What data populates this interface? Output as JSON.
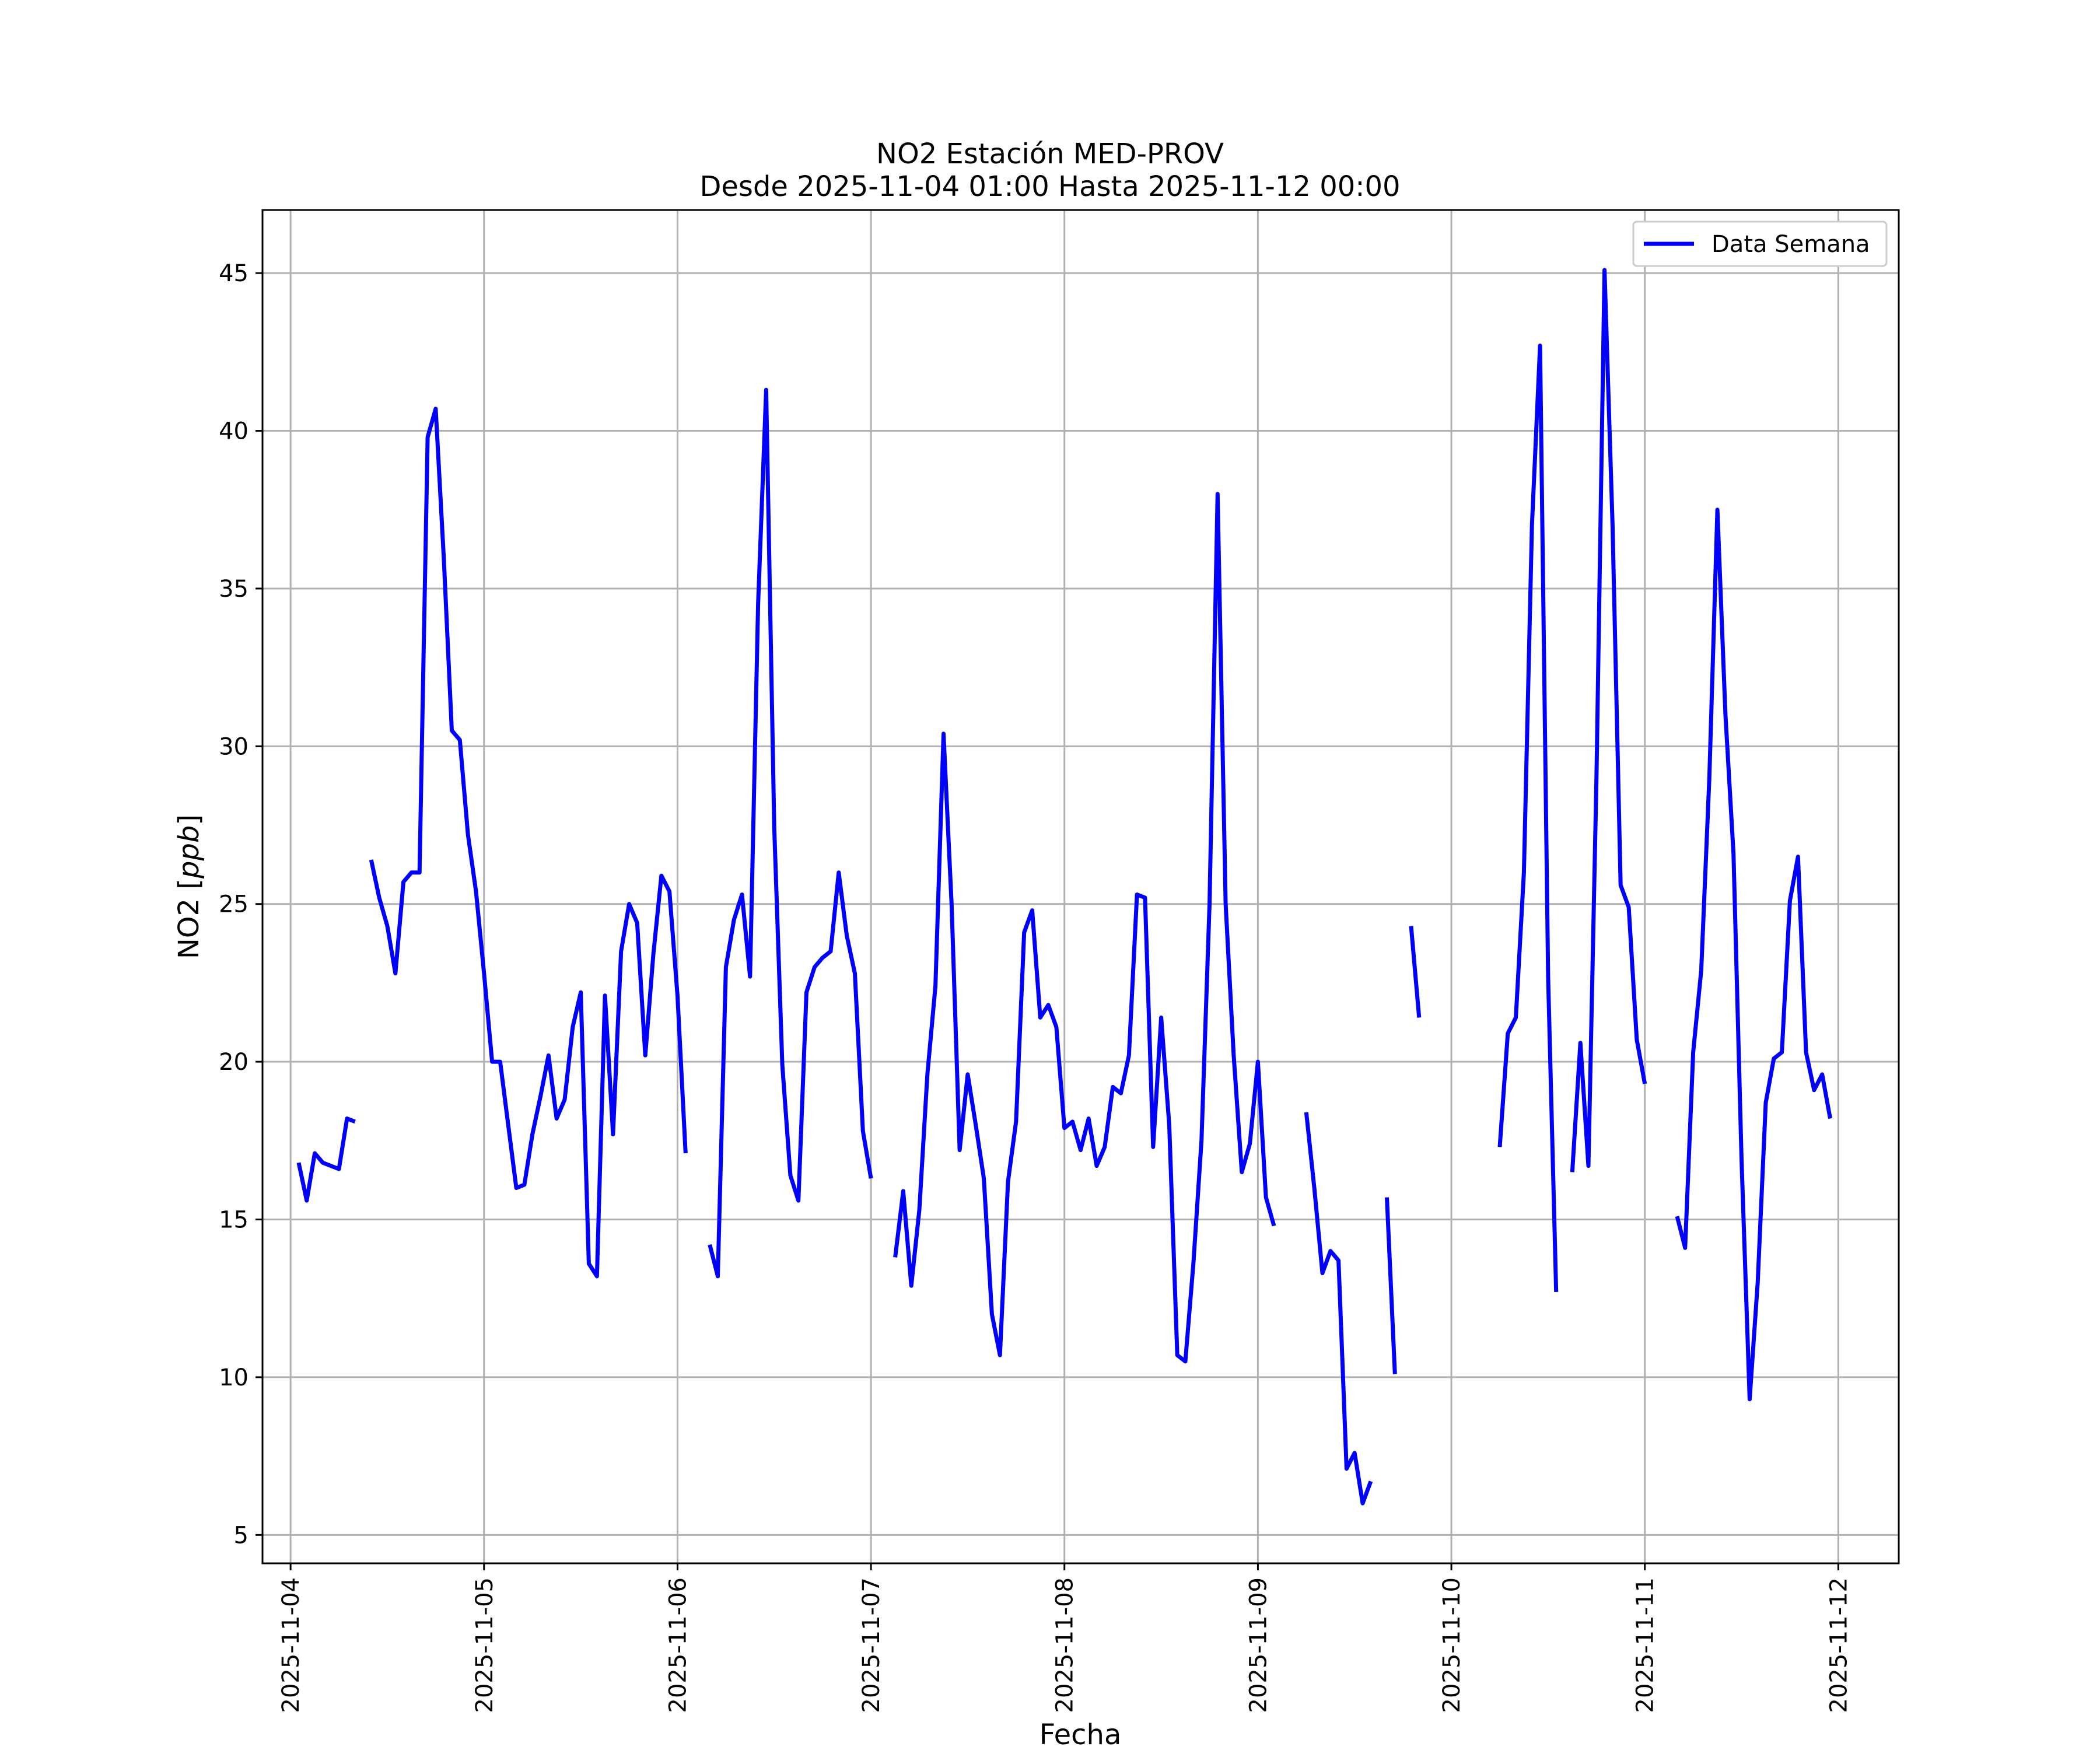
{
  "chart_data": {
    "type": "line",
    "title": "NO2 Estación MED-PROV",
    "subtitle": "Desde 2025-11-04 01:00 Hasta 2025-11-12 00:00",
    "xlabel": "Fecha",
    "ylabel": "NO2 [ppb]",
    "ylabel_main": "NO2 [",
    "ylabel_unit": "ppb",
    "ylabel_close": "]",
    "xlim": [
      "2025-11-03 20:31",
      "2025-11-12 07:30"
    ],
    "ylim": [
      4.1,
      47.0
    ],
    "x_ticks": [
      "2025-11-04",
      "2025-11-05",
      "2025-11-06",
      "2025-11-07",
      "2025-11-08",
      "2025-11-09",
      "2025-11-10",
      "2025-11-11",
      "2025-11-12"
    ],
    "y_ticks": [
      5,
      10,
      15,
      20,
      25,
      30,
      35,
      40,
      45
    ],
    "grid": true,
    "legend_position": "top-right",
    "series": [
      {
        "name": "Data Semana",
        "color": "#0000ff",
        "points": [
          [
            "2025-11-04 01:00",
            16.8
          ],
          [
            "2025-11-04 02:00",
            15.6
          ],
          [
            "2025-11-04 03:00",
            17.1
          ],
          [
            "2025-11-04 04:00",
            16.8
          ],
          [
            "2025-11-04 05:00",
            16.7
          ],
          [
            "2025-11-04 06:00",
            16.6
          ],
          [
            "2025-11-04 07:00",
            18.2
          ],
          [
            "2025-11-04 08:00",
            18.1
          ],
          [
            "2025-11-04 09:00",
            null
          ],
          [
            "2025-11-04 10:00",
            26.4
          ],
          [
            "2025-11-04 11:00",
            25.2
          ],
          [
            "2025-11-04 12:00",
            24.3
          ],
          [
            "2025-11-04 13:00",
            22.8
          ],
          [
            "2025-11-04 14:00",
            25.7
          ],
          [
            "2025-11-04 15:00",
            26.0
          ],
          [
            "2025-11-04 16:00",
            26.0
          ],
          [
            "2025-11-04 17:00",
            39.8
          ],
          [
            "2025-11-04 18:00",
            40.7
          ],
          [
            "2025-11-04 19:00",
            36.0
          ],
          [
            "2025-11-04 20:00",
            30.5
          ],
          [
            "2025-11-04 21:00",
            30.2
          ],
          [
            "2025-11-04 22:00",
            27.2
          ],
          [
            "2025-11-04 23:00",
            25.4
          ],
          [
            "2025-11-05 00:00",
            22.8
          ],
          [
            "2025-11-05 01:00",
            20.0
          ],
          [
            "2025-11-05 02:00",
            20.0
          ],
          [
            "2025-11-05 03:00",
            18.0
          ],
          [
            "2025-11-05 04:00",
            16.0
          ],
          [
            "2025-11-05 05:00",
            16.1
          ],
          [
            "2025-11-05 06:00",
            17.7
          ],
          [
            "2025-11-05 07:00",
            18.9
          ],
          [
            "2025-11-05 08:00",
            20.2
          ],
          [
            "2025-11-05 09:00",
            18.2
          ],
          [
            "2025-11-05 10:00",
            18.8
          ],
          [
            "2025-11-05 11:00",
            21.1
          ],
          [
            "2025-11-05 12:00",
            22.2
          ],
          [
            "2025-11-05 13:00",
            13.6
          ],
          [
            "2025-11-05 14:00",
            13.2
          ],
          [
            "2025-11-05 15:00",
            22.1
          ],
          [
            "2025-11-05 16:00",
            17.7
          ],
          [
            "2025-11-05 17:00",
            23.5
          ],
          [
            "2025-11-05 18:00",
            25.0
          ],
          [
            "2025-11-05 19:00",
            24.4
          ],
          [
            "2025-11-05 20:00",
            20.2
          ],
          [
            "2025-11-05 21:00",
            23.4
          ],
          [
            "2025-11-05 22:00",
            25.9
          ],
          [
            "2025-11-05 23:00",
            25.4
          ],
          [
            "2025-11-06 00:00",
            22.1
          ],
          [
            "2025-11-06 01:00",
            17.1
          ],
          [
            "2025-11-06 02:00",
            null
          ],
          [
            "2025-11-06 04:00",
            14.2
          ],
          [
            "2025-11-06 05:00",
            13.2
          ],
          [
            "2025-11-06 06:00",
            23.0
          ],
          [
            "2025-11-06 07:00",
            24.5
          ],
          [
            "2025-11-06 08:00",
            25.3
          ],
          [
            "2025-11-06 09:00",
            22.7
          ],
          [
            "2025-11-06 10:00",
            34.5
          ],
          [
            "2025-11-06 11:00",
            41.3
          ],
          [
            "2025-11-06 12:00",
            27.4
          ],
          [
            "2025-11-06 13:00",
            19.9
          ],
          [
            "2025-11-06 14:00",
            16.4
          ],
          [
            "2025-11-06 15:00",
            15.6
          ],
          [
            "2025-11-06 16:00",
            22.2
          ],
          [
            "2025-11-06 17:00",
            23.0
          ],
          [
            "2025-11-06 18:00",
            23.3
          ],
          [
            "2025-11-06 19:00",
            23.5
          ],
          [
            "2025-11-06 20:00",
            26.0
          ],
          [
            "2025-11-06 21:00",
            24.0
          ],
          [
            "2025-11-06 22:00",
            22.8
          ],
          [
            "2025-11-06 23:00",
            17.8
          ],
          [
            "2025-11-07 00:00",
            16.3
          ],
          [
            "2025-11-07 01:00",
            null
          ],
          [
            "2025-11-07 03:00",
            13.8
          ],
          [
            "2025-11-07 04:00",
            15.9
          ],
          [
            "2025-11-07 05:00",
            12.9
          ],
          [
            "2025-11-07 06:00",
            15.3
          ],
          [
            "2025-11-07 07:00",
            19.6
          ],
          [
            "2025-11-07 08:00",
            22.4
          ],
          [
            "2025-11-07 09:00",
            30.4
          ],
          [
            "2025-11-07 10:00",
            25.0
          ],
          [
            "2025-11-07 11:00",
            17.2
          ],
          [
            "2025-11-07 12:00",
            19.6
          ],
          [
            "2025-11-07 13:00",
            18.0
          ],
          [
            "2025-11-07 14:00",
            16.3
          ],
          [
            "2025-11-07 15:00",
            12.0
          ],
          [
            "2025-11-07 16:00",
            10.7
          ],
          [
            "2025-11-07 17:00",
            16.2
          ],
          [
            "2025-11-07 18:00",
            18.1
          ],
          [
            "2025-11-07 19:00",
            24.1
          ],
          [
            "2025-11-07 20:00",
            24.8
          ],
          [
            "2025-11-07 21:00",
            21.4
          ],
          [
            "2025-11-07 22:00",
            21.8
          ],
          [
            "2025-11-07 23:00",
            21.1
          ],
          [
            "2025-11-08 00:00",
            17.9
          ],
          [
            "2025-11-08 01:00",
            18.1
          ],
          [
            "2025-11-08 02:00",
            17.2
          ],
          [
            "2025-11-08 03:00",
            18.2
          ],
          [
            "2025-11-08 04:00",
            16.7
          ],
          [
            "2025-11-08 05:00",
            17.3
          ],
          [
            "2025-11-08 06:00",
            19.2
          ],
          [
            "2025-11-08 07:00",
            19.0
          ],
          [
            "2025-11-08 08:00",
            20.2
          ],
          [
            "2025-11-08 09:00",
            25.3
          ],
          [
            "2025-11-08 10:00",
            25.2
          ],
          [
            "2025-11-08 11:00",
            17.3
          ],
          [
            "2025-11-08 12:00",
            21.4
          ],
          [
            "2025-11-08 13:00",
            18.0
          ],
          [
            "2025-11-08 14:00",
            10.7
          ],
          [
            "2025-11-08 15:00",
            10.5
          ],
          [
            "2025-11-08 16:00",
            13.6
          ],
          [
            "2025-11-08 17:00",
            17.5
          ],
          [
            "2025-11-08 18:00",
            25.0
          ],
          [
            "2025-11-08 19:00",
            38.0
          ],
          [
            "2025-11-08 20:00",
            25.0
          ],
          [
            "2025-11-08 21:00",
            20.2
          ],
          [
            "2025-11-08 22:00",
            16.5
          ],
          [
            "2025-11-08 23:00",
            17.4
          ],
          [
            "2025-11-09 00:00",
            20.0
          ],
          [
            "2025-11-09 01:00",
            15.7
          ],
          [
            "2025-11-09 02:00",
            14.8
          ],
          [
            "2025-11-09 03:00",
            null
          ],
          [
            "2025-11-09 06:00",
            18.4
          ],
          [
            "2025-11-09 07:00",
            16.0
          ],
          [
            "2025-11-09 08:00",
            13.3
          ],
          [
            "2025-11-09 09:00",
            14.0
          ],
          [
            "2025-11-09 10:00",
            13.7
          ],
          [
            "2025-11-09 11:00",
            7.1
          ],
          [
            "2025-11-09 12:00",
            7.6
          ],
          [
            "2025-11-09 13:00",
            6.0
          ],
          [
            "2025-11-09 14:00",
            6.7
          ],
          [
            "2025-11-09 15:00",
            null
          ],
          [
            "2025-11-09 16:00",
            15.7
          ],
          [
            "2025-11-09 17:00",
            10.1
          ],
          [
            "2025-11-09 18:00",
            null
          ],
          [
            "2025-11-09 19:00",
            24.3
          ],
          [
            "2025-11-09 20:00",
            21.4
          ],
          [
            "2025-11-09 21:00",
            null
          ],
          [
            "2025-11-10 06:00",
            17.3
          ],
          [
            "2025-11-10 07:00",
            20.9
          ],
          [
            "2025-11-10 08:00",
            21.4
          ],
          [
            "2025-11-10 09:00",
            26.0
          ],
          [
            "2025-11-10 10:00",
            37.0
          ],
          [
            "2025-11-10 11:00",
            42.7
          ],
          [
            "2025-11-10 12:00",
            22.7
          ],
          [
            "2025-11-10 13:00",
            12.7
          ],
          [
            "2025-11-10 14:00",
            null
          ],
          [
            "2025-11-10 15:00",
            16.5
          ],
          [
            "2025-11-10 16:00",
            20.6
          ],
          [
            "2025-11-10 17:00",
            16.7
          ],
          [
            "2025-11-10 18:00",
            29.0
          ],
          [
            "2025-11-10 19:00",
            45.1
          ],
          [
            "2025-11-10 20:00",
            37.0
          ],
          [
            "2025-11-10 21:00",
            25.6
          ],
          [
            "2025-11-10 22:00",
            24.9
          ],
          [
            "2025-11-10 23:00",
            20.7
          ],
          [
            "2025-11-11 00:00",
            19.3
          ],
          [
            "2025-11-11 01:00",
            null
          ],
          [
            "2025-11-11 04:00",
            15.1
          ],
          [
            "2025-11-11 05:00",
            14.1
          ],
          [
            "2025-11-11 06:00",
            20.3
          ],
          [
            "2025-11-11 07:00",
            22.9
          ],
          [
            "2025-11-11 08:00",
            29.0
          ],
          [
            "2025-11-11 09:00",
            37.5
          ],
          [
            "2025-11-11 10:00",
            31.0
          ],
          [
            "2025-11-11 11:00",
            26.6
          ],
          [
            "2025-11-11 12:00",
            16.9
          ],
          [
            "2025-11-11 13:00",
            9.3
          ],
          [
            "2025-11-11 14:00",
            13.0
          ],
          [
            "2025-11-11 15:00",
            18.7
          ],
          [
            "2025-11-11 16:00",
            20.1
          ],
          [
            "2025-11-11 17:00",
            20.3
          ],
          [
            "2025-11-11 18:00",
            25.1
          ],
          [
            "2025-11-11 19:00",
            26.5
          ],
          [
            "2025-11-11 20:00",
            20.3
          ],
          [
            "2025-11-11 21:00",
            19.1
          ],
          [
            "2025-11-11 22:00",
            19.6
          ],
          [
            "2025-11-11 23:00",
            18.2
          ]
        ]
      }
    ]
  }
}
